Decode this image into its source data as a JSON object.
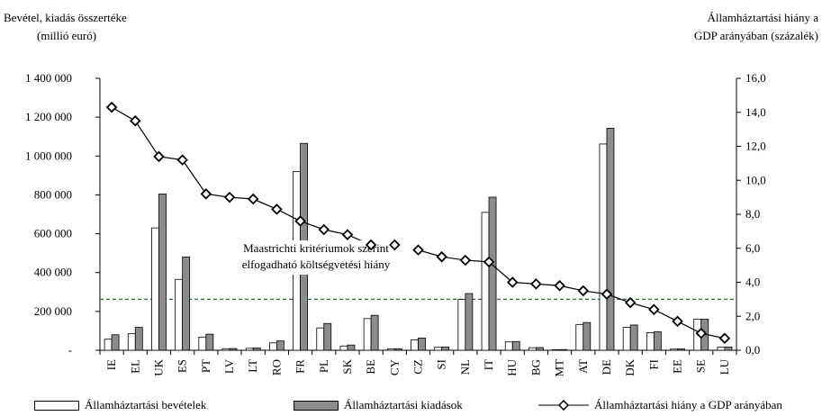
{
  "left_axis_title": [
    "Bevétel, kiadás összertéke",
    "(millió euró)"
  ],
  "right_axis_title": [
    "Államháztartási hiány a",
    "GDP  arányában (százalék)"
  ],
  "annotation": [
    "Maastrichti kritériumok szerint",
    "elfogadható költségvetési hiány"
  ],
  "chart_data": {
    "type": "bar",
    "categories": [
      "IE",
      "EL",
      "UK",
      "ES",
      "PT",
      "LV",
      "LT",
      "RO",
      "FR",
      "PL",
      "SK",
      "BE",
      "CY",
      "CZ",
      "SI",
      "NL",
      "IT",
      "HU",
      "BG",
      "MT",
      "AT",
      "DE",
      "DK",
      "FI",
      "EE",
      "SE",
      "LU"
    ],
    "series": [
      {
        "name": "Államháztartási bevételek",
        "axis": "left",
        "type": "bar",
        "values": [
          57000,
          85000,
          630000,
          365000,
          68000,
          8000,
          10000,
          38000,
          920000,
          115000,
          22000,
          163000,
          7000,
          53000,
          15000,
          262000,
          710000,
          43000,
          13000,
          3000,
          133000,
          1062000,
          118000,
          90000,
          6000,
          160000,
          16000
        ]
      },
      {
        "name": "Államháztartási kiadások",
        "axis": "left",
        "type": "bar",
        "values": [
          80000,
          118000,
          805000,
          480000,
          83000,
          9000,
          12000,
          48000,
          1065000,
          138000,
          27000,
          180000,
          8000,
          63000,
          17000,
          292000,
          788000,
          45000,
          14000,
          3500,
          143000,
          1143000,
          130000,
          95000,
          7000,
          160000,
          17000
        ]
      },
      {
        "name": "Államháztartási hiány a GDP arányában",
        "axis": "right",
        "type": "line",
        "marker": "diamond",
        "values": [
          14.3,
          13.5,
          11.4,
          11.2,
          9.2,
          9.0,
          8.9,
          8.3,
          7.6,
          7.1,
          6.8,
          6.2,
          6.2,
          5.9,
          5.5,
          5.3,
          5.2,
          4.0,
          3.9,
          3.8,
          3.5,
          3.3,
          2.8,
          2.4,
          1.7,
          1.0,
          0.7
        ]
      }
    ],
    "reference_line": {
      "axis": "right",
      "value": 3.0,
      "style": "dashed",
      "color": "#2e6b2e"
    },
    "left_axis": {
      "min": 0,
      "max": 1400000,
      "ticks": [
        0,
        200000,
        400000,
        600000,
        800000,
        1000000,
        1200000,
        1400000
      ],
      "tick_labels": [
        "-",
        "200 000",
        "400 000",
        "600 000",
        "800 000",
        "1 000 000",
        "1 200 000",
        "1 400 000"
      ]
    },
    "right_axis": {
      "min": 0,
      "max": 16,
      "ticks": [
        0,
        2,
        4,
        6,
        8,
        10,
        12,
        14,
        16
      ],
      "tick_labels": [
        "0,0",
        "2,0",
        "4,0",
        "6,0",
        "8,0",
        "10,0",
        "12,0",
        "14,0",
        "16,0"
      ]
    },
    "grid": false,
    "legend_position": "bottom",
    "colors": {
      "revenue_fill": "#ffffff",
      "expenditure_fill": "#8c8c8c",
      "line": "#000000"
    }
  }
}
